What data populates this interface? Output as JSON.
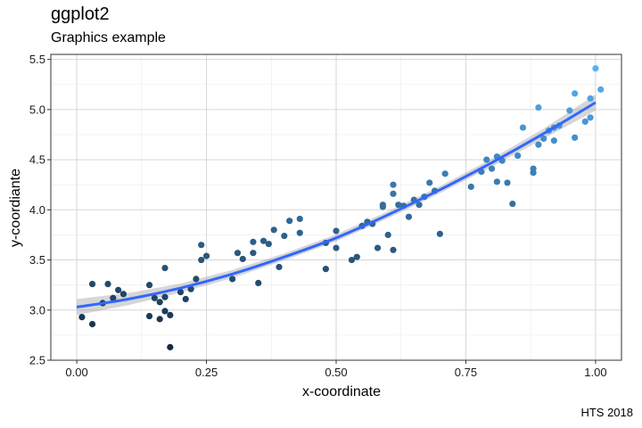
{
  "chart_data": {
    "type": "scatter",
    "title": "ggplot2",
    "subtitle": "Graphics example",
    "caption": "HTS 2018",
    "xlabel": "x-coordinate",
    "ylabel": "y-coordiante",
    "xlim": [
      -0.05,
      1.05
    ],
    "ylim": [
      2.5,
      5.55
    ],
    "x_ticks": [
      0.0,
      0.25,
      0.5,
      0.75,
      1.0
    ],
    "x_tick_labels": [
      "0.00",
      "0.25",
      "0.50",
      "0.75",
      "1.00"
    ],
    "y_ticks": [
      2.5,
      3.0,
      3.5,
      4.0,
      4.5,
      5.0,
      5.5
    ],
    "y_tick_labels": [
      "2.5",
      "3.0",
      "3.5",
      "4.0",
      "4.5",
      "5.0",
      "5.5"
    ],
    "grid": true,
    "color_scale": {
      "low": "#132B43",
      "high": "#56B1F7",
      "mapped_to": "y"
    },
    "smooth": {
      "color": "#3366FF",
      "band_color": "#999999",
      "x": [
        0.0,
        0.1,
        0.2,
        0.3,
        0.4,
        0.5,
        0.6,
        0.7,
        0.8,
        0.9,
        1.0
      ],
      "y": [
        3.03,
        3.11,
        3.22,
        3.36,
        3.53,
        3.72,
        3.95,
        4.2,
        4.47,
        4.76,
        5.07
      ],
      "band": [
        0.08,
        0.06,
        0.045,
        0.04,
        0.035,
        0.035,
        0.035,
        0.035,
        0.04,
        0.05,
        0.08
      ]
    },
    "points": [
      [
        0.01,
        2.93
      ],
      [
        0.03,
        3.26
      ],
      [
        0.03,
        2.86
      ],
      [
        0.05,
        3.07
      ],
      [
        0.06,
        3.26
      ],
      [
        0.07,
        3.12
      ],
      [
        0.08,
        3.2
      ],
      [
        0.09,
        3.16
      ],
      [
        0.14,
        3.25
      ],
      [
        0.14,
        2.94
      ],
      [
        0.15,
        3.12
      ],
      [
        0.16,
        3.08
      ],
      [
        0.16,
        2.91
      ],
      [
        0.17,
        2.99
      ],
      [
        0.17,
        3.42
      ],
      [
        0.17,
        3.13
      ],
      [
        0.18,
        2.95
      ],
      [
        0.18,
        2.63
      ],
      [
        0.2,
        3.18
      ],
      [
        0.21,
        3.11
      ],
      [
        0.22,
        3.21
      ],
      [
        0.23,
        3.31
      ],
      [
        0.24,
        3.5
      ],
      [
        0.24,
        3.65
      ],
      [
        0.25,
        3.54
      ],
      [
        0.3,
        3.31
      ],
      [
        0.31,
        3.57
      ],
      [
        0.32,
        3.51
      ],
      [
        0.34,
        3.57
      ],
      [
        0.34,
        3.68
      ],
      [
        0.35,
        3.27
      ],
      [
        0.36,
        3.69
      ],
      [
        0.37,
        3.66
      ],
      [
        0.38,
        3.8
      ],
      [
        0.39,
        3.43
      ],
      [
        0.4,
        3.74
      ],
      [
        0.41,
        3.89
      ],
      [
        0.43,
        3.91
      ],
      [
        0.43,
        3.77
      ],
      [
        0.48,
        3.41
      ],
      [
        0.48,
        3.67
      ],
      [
        0.5,
        3.62
      ],
      [
        0.5,
        3.79
      ],
      [
        0.53,
        3.5
      ],
      [
        0.54,
        3.53
      ],
      [
        0.55,
        3.84
      ],
      [
        0.56,
        3.88
      ],
      [
        0.57,
        3.86
      ],
      [
        0.58,
        3.62
      ],
      [
        0.59,
        4.03
      ],
      [
        0.59,
        4.05
      ],
      [
        0.6,
        3.75
      ],
      [
        0.61,
        3.6
      ],
      [
        0.61,
        4.16
      ],
      [
        0.61,
        4.25
      ],
      [
        0.62,
        4.05
      ],
      [
        0.63,
        4.04
      ],
      [
        0.64,
        3.93
      ],
      [
        0.65,
        4.1
      ],
      [
        0.66,
        4.05
      ],
      [
        0.67,
        4.13
      ],
      [
        0.68,
        4.27
      ],
      [
        0.69,
        4.19
      ],
      [
        0.7,
        3.76
      ],
      [
        0.71,
        4.36
      ],
      [
        0.76,
        4.23
      ],
      [
        0.78,
        4.38
      ],
      [
        0.79,
        4.5
      ],
      [
        0.8,
        4.41
      ],
      [
        0.81,
        4.53
      ],
      [
        0.81,
        4.28
      ],
      [
        0.82,
        4.49
      ],
      [
        0.83,
        4.27
      ],
      [
        0.84,
        4.06
      ],
      [
        0.85,
        4.54
      ],
      [
        0.86,
        4.82
      ],
      [
        0.88,
        4.37
      ],
      [
        0.88,
        4.41
      ],
      [
        0.89,
        5.02
      ],
      [
        0.89,
        4.65
      ],
      [
        0.9,
        4.71
      ],
      [
        0.91,
        4.79
      ],
      [
        0.92,
        4.82
      ],
      [
        0.92,
        4.69
      ],
      [
        0.93,
        4.84
      ],
      [
        0.95,
        4.99
      ],
      [
        0.96,
        4.72
      ],
      [
        0.96,
        5.16
      ],
      [
        0.98,
        4.88
      ],
      [
        0.99,
        4.92
      ],
      [
        0.99,
        5.11
      ],
      [
        1.0,
        5.41
      ],
      [
        1.01,
        5.2
      ]
    ]
  }
}
